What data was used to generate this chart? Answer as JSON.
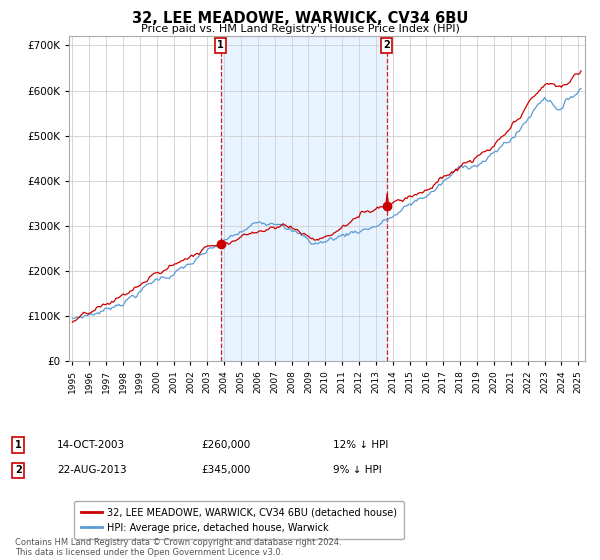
{
  "title": "32, LEE MEADOWE, WARWICK, CV34 6BU",
  "subtitle": "Price paid vs. HM Land Registry's House Price Index (HPI)",
  "ylim": [
    0,
    720000
  ],
  "xlim_start": 1994.8,
  "xlim_end": 2025.4,
  "legend_label_red": "32, LEE MEADOWE, WARWICK, CV34 6BU (detached house)",
  "legend_label_blue": "HPI: Average price, detached house, Warwick",
  "transaction1_label": "1",
  "transaction1_date": "14-OCT-2003",
  "transaction1_price": "£260,000",
  "transaction1_hpi": "12% ↓ HPI",
  "transaction1_x": 2003.79,
  "transaction1_y": 260000,
  "transaction2_label": "2",
  "transaction2_date": "22-AUG-2013",
  "transaction2_price": "£345,000",
  "transaction2_hpi": "9% ↓ HPI",
  "transaction2_x": 2013.63,
  "transaction2_y": 345000,
  "vline1_x": 2003.79,
  "vline2_x": 2013.63,
  "footer": "Contains HM Land Registry data © Crown copyright and database right 2024.\nThis data is licensed under the Open Government Licence v3.0.",
  "hpi_color": "#5b9bd5",
  "price_color": "#cc0000",
  "grid_color": "#d0d0d0",
  "bg_color": "#ffffff",
  "plot_bg_color": "#ffffff",
  "shade_color": "#ddeeff"
}
